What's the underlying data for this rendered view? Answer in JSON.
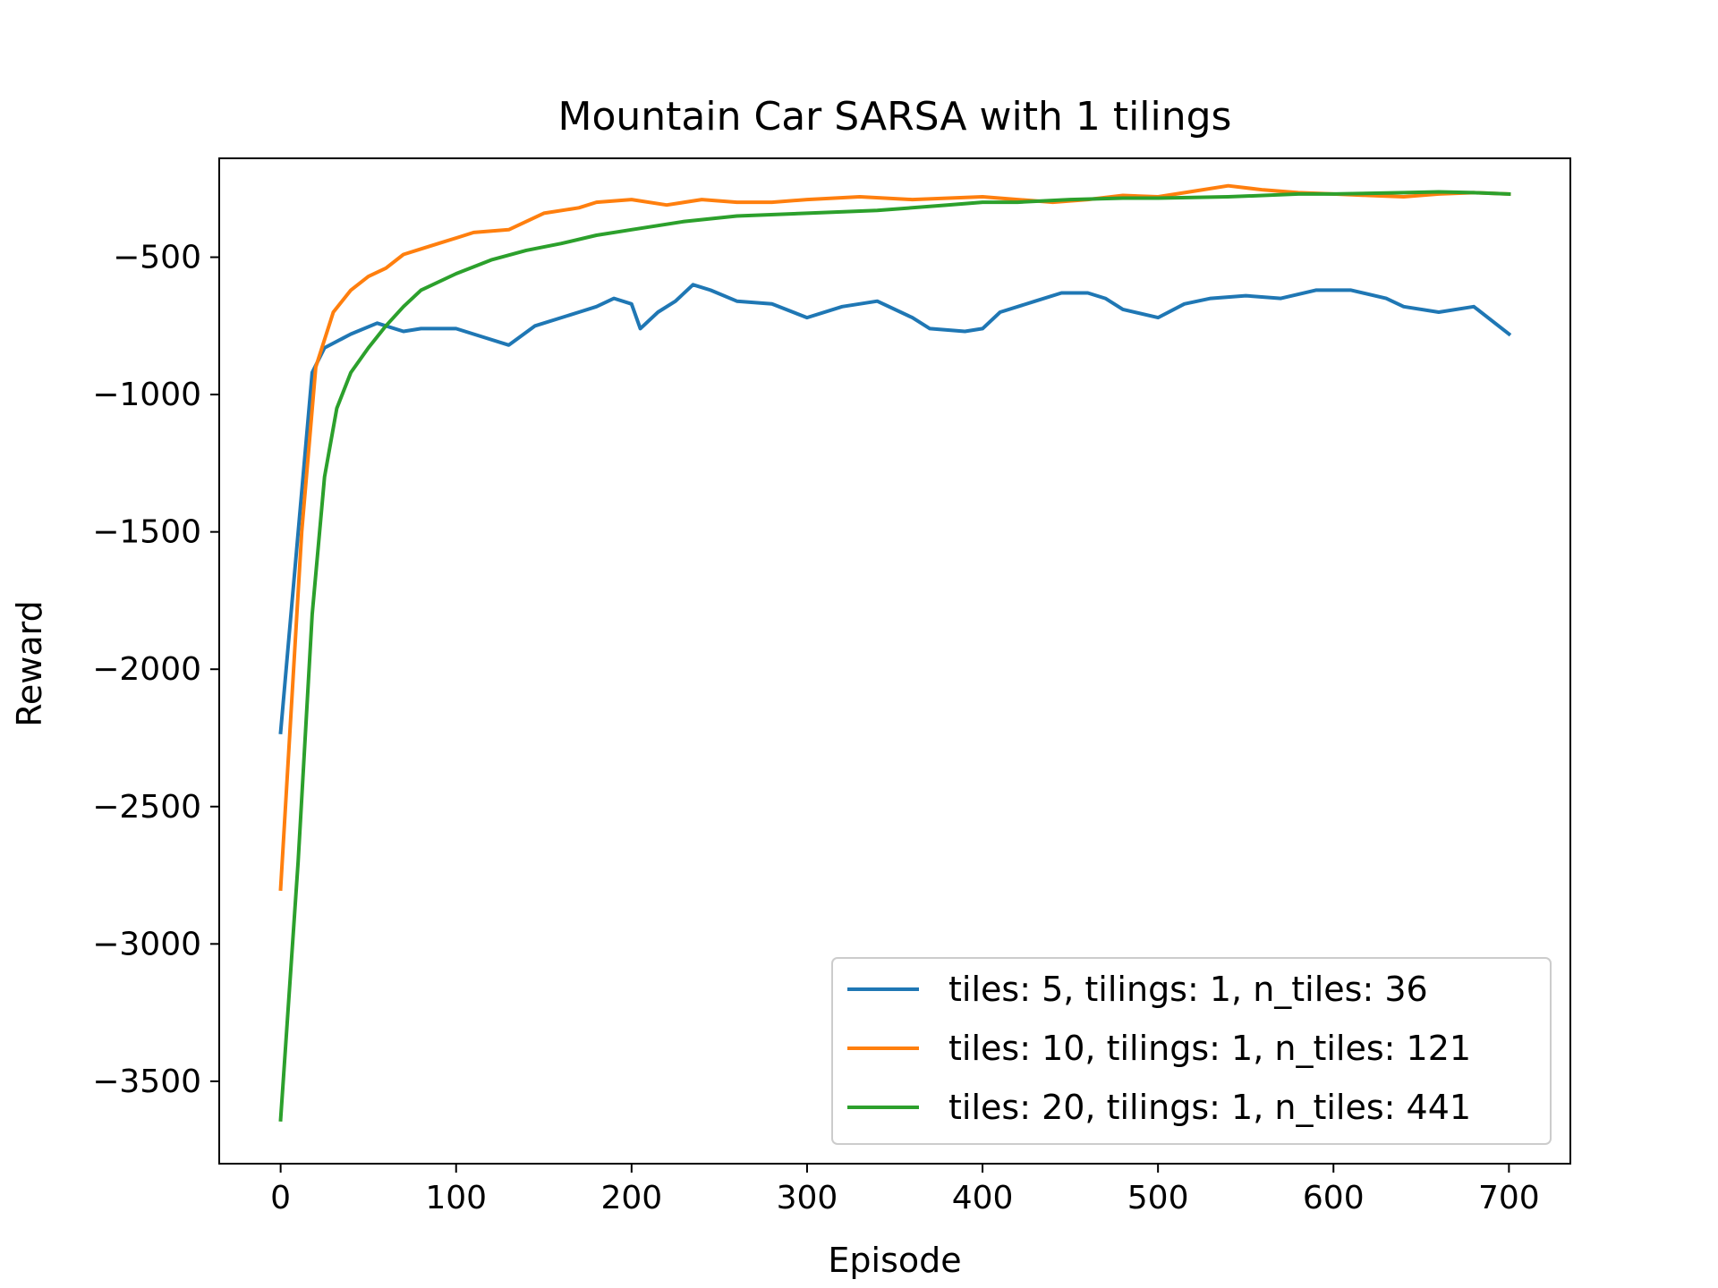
{
  "chart_data": {
    "type": "line",
    "title": "Mountain Car SARSA with 1 tilings",
    "xlabel": "Episode",
    "ylabel": "Reward",
    "xlim": [
      -35,
      735
    ],
    "ylim": [
      -3800,
      -140
    ],
    "xticks": [
      0,
      100,
      200,
      300,
      400,
      500,
      600,
      700
    ],
    "xtick_labels": [
      "0",
      "100",
      "200",
      "300",
      "400",
      "500",
      "600",
      "700"
    ],
    "yticks": [
      -3500,
      -3000,
      -2500,
      -2000,
      -1500,
      -1000,
      -500
    ],
    "ytick_labels": [
      "−3500",
      "−3000",
      "−2500",
      "−2000",
      "−1500",
      "−1000",
      "−500"
    ],
    "grid": false,
    "legend_position": "lower-right",
    "series": [
      {
        "name": "tiles: 5, tilings: 1, n_tiles: 36",
        "color": "#1f77b4",
        "points": [
          [
            0,
            -2230
          ],
          [
            18,
            -920
          ],
          [
            25,
            -830
          ],
          [
            40,
            -780
          ],
          [
            55,
            -740
          ],
          [
            70,
            -770
          ],
          [
            80,
            -760
          ],
          [
            100,
            -760
          ],
          [
            115,
            -790
          ],
          [
            130,
            -820
          ],
          [
            145,
            -750
          ],
          [
            160,
            -720
          ],
          [
            170,
            -700
          ],
          [
            180,
            -680
          ],
          [
            190,
            -650
          ],
          [
            200,
            -670
          ],
          [
            205,
            -760
          ],
          [
            215,
            -700
          ],
          [
            225,
            -660
          ],
          [
            235,
            -600
          ],
          [
            245,
            -620
          ],
          [
            260,
            -660
          ],
          [
            280,
            -670
          ],
          [
            300,
            -720
          ],
          [
            320,
            -680
          ],
          [
            340,
            -660
          ],
          [
            360,
            -720
          ],
          [
            370,
            -760
          ],
          [
            390,
            -770
          ],
          [
            400,
            -760
          ],
          [
            410,
            -700
          ],
          [
            430,
            -660
          ],
          [
            445,
            -630
          ],
          [
            460,
            -630
          ],
          [
            470,
            -650
          ],
          [
            480,
            -690
          ],
          [
            500,
            -720
          ],
          [
            515,
            -670
          ],
          [
            530,
            -650
          ],
          [
            550,
            -640
          ],
          [
            570,
            -650
          ],
          [
            590,
            -620
          ],
          [
            610,
            -620
          ],
          [
            630,
            -650
          ],
          [
            640,
            -680
          ],
          [
            660,
            -700
          ],
          [
            680,
            -680
          ],
          [
            700,
            -780
          ]
        ]
      },
      {
        "name": "tiles: 10, tilings: 1, n_tiles: 121",
        "color": "#ff7f0e",
        "points": [
          [
            0,
            -2800
          ],
          [
            12,
            -1500
          ],
          [
            20,
            -900
          ],
          [
            30,
            -700
          ],
          [
            40,
            -620
          ],
          [
            50,
            -570
          ],
          [
            60,
            -540
          ],
          [
            70,
            -490
          ],
          [
            80,
            -470
          ],
          [
            90,
            -450
          ],
          [
            100,
            -430
          ],
          [
            110,
            -410
          ],
          [
            130,
            -400
          ],
          [
            150,
            -340
          ],
          [
            170,
            -320
          ],
          [
            180,
            -300
          ],
          [
            200,
            -290
          ],
          [
            220,
            -310
          ],
          [
            240,
            -290
          ],
          [
            260,
            -300
          ],
          [
            280,
            -300
          ],
          [
            300,
            -290
          ],
          [
            330,
            -280
          ],
          [
            360,
            -290
          ],
          [
            400,
            -280
          ],
          [
            420,
            -290
          ],
          [
            440,
            -300
          ],
          [
            460,
            -290
          ],
          [
            480,
            -275
          ],
          [
            500,
            -280
          ],
          [
            520,
            -260
          ],
          [
            540,
            -240
          ],
          [
            560,
            -255
          ],
          [
            580,
            -265
          ],
          [
            600,
            -270
          ],
          [
            620,
            -275
          ],
          [
            640,
            -280
          ],
          [
            660,
            -270
          ],
          [
            680,
            -265
          ],
          [
            700,
            -270
          ]
        ]
      },
      {
        "name": "tiles: 20, tilings: 1, n_tiles: 441",
        "color": "#2ca02c",
        "points": [
          [
            0,
            -3640
          ],
          [
            10,
            -2700
          ],
          [
            18,
            -1800
          ],
          [
            25,
            -1300
          ],
          [
            32,
            -1050
          ],
          [
            40,
            -920
          ],
          [
            50,
            -830
          ],
          [
            60,
            -750
          ],
          [
            70,
            -680
          ],
          [
            80,
            -620
          ],
          [
            100,
            -560
          ],
          [
            120,
            -510
          ],
          [
            140,
            -475
          ],
          [
            160,
            -450
          ],
          [
            180,
            -420
          ],
          [
            200,
            -400
          ],
          [
            230,
            -370
          ],
          [
            260,
            -350
          ],
          [
            300,
            -340
          ],
          [
            340,
            -330
          ],
          [
            380,
            -310
          ],
          [
            400,
            -300
          ],
          [
            420,
            -300
          ],
          [
            450,
            -290
          ],
          [
            480,
            -285
          ],
          [
            500,
            -285
          ],
          [
            540,
            -280
          ],
          [
            560,
            -275
          ],
          [
            580,
            -270
          ],
          [
            600,
            -270
          ],
          [
            640,
            -265
          ],
          [
            660,
            -262
          ],
          [
            680,
            -265
          ],
          [
            700,
            -270
          ]
        ]
      }
    ]
  }
}
